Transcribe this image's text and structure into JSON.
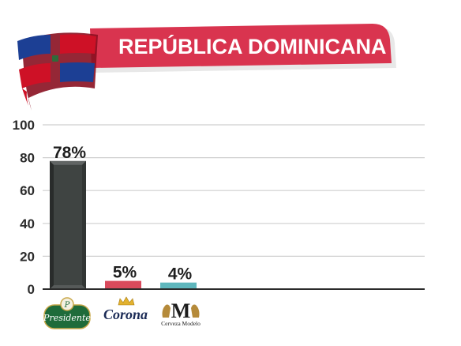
{
  "chart_data": {
    "type": "bar",
    "title": "REPÚBLICA DOMINICANA",
    "categories": [
      "Presidente",
      "Corona",
      "Cerveza Modelo"
    ],
    "values": [
      78,
      5,
      4
    ],
    "value_labels": [
      "78%",
      "5%",
      "4%"
    ],
    "ylim": [
      0,
      100
    ],
    "yticks": [
      0,
      20,
      40,
      60,
      80,
      100
    ],
    "grid": true,
    "legend": "none",
    "bar_colors": [
      "#3f4442",
      "#d94a5c",
      "#5fb7bd"
    ]
  },
  "icons": {
    "flag": "dominican-republic-flag-icon",
    "logos": [
      "presidente-logo",
      "corona-logo",
      "cerveza-modelo-logo"
    ]
  },
  "colors": {
    "banner": "#d9344f",
    "grid": "#cfcfcf",
    "axis": "#2b2b2b",
    "flag_blue": "#1c3f94",
    "flag_red": "#ce1126"
  }
}
